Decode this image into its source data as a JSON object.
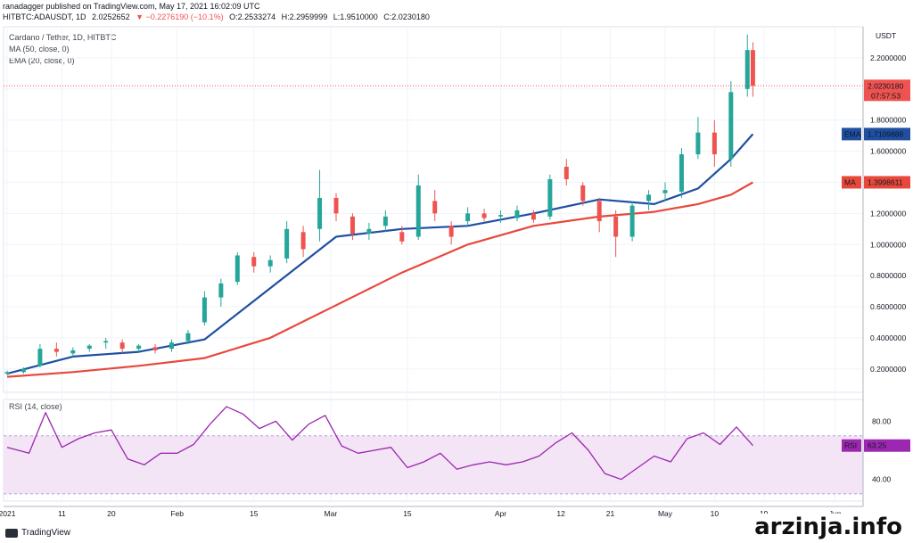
{
  "header": {
    "publisher_line": "ranadagger published on TradingView.com, May 17, 2021 16:02:09 UTC",
    "symbol": "HITBTC:ADAUSDT, 1D",
    "last": "2.0252652",
    "change": "▼ −0.2276190 (−10.1%)",
    "open": "O:2.2533274",
    "high": "H:2.2959999",
    "low": "L:1.9510000",
    "close": "C:2.0230180"
  },
  "legend": {
    "title": "Cardano / Tether, 1D, HITBTC",
    "ma": "MA (50, close, 0)",
    "ema": "EMA (20, close, 0)"
  },
  "axis": {
    "currency": "USDT",
    "price_ticks": [
      "2.2000000",
      "2.0000000",
      "1.8000000",
      "1.6000000",
      "1.4000000",
      "1.2000000",
      "1.0000000",
      "0.8000000",
      "0.6000000",
      "0.4000000",
      "0.2000000"
    ],
    "price_tick_values": [
      2.2,
      2.0,
      1.8,
      1.6,
      1.4,
      1.2,
      1.0,
      0.8,
      0.6,
      0.4,
      0.2
    ],
    "rsi_ticks": [
      "80.00",
      "40.00"
    ],
    "rsi_tick_values": [
      80,
      40
    ],
    "x_ticks": [
      "2021",
      "11",
      "20",
      "Feb",
      "15",
      "Mar",
      "15",
      "Apr",
      "12",
      "21",
      "May",
      "10",
      "19",
      "Jun"
    ],
    "x_tick_days": [
      0,
      10,
      19,
      31,
      45,
      59,
      73,
      90,
      101,
      110,
      120,
      129,
      138,
      151
    ]
  },
  "badges": {
    "price_value": "2.0230180",
    "countdown": "07:57:53",
    "ema_name": "EMA",
    "ema_value": "1.7109888",
    "ma_name": "MA",
    "ma_value": "1.3998611",
    "rsi_name": "RSI",
    "rsi_value": "63.25"
  },
  "rsi_title": "RSI (14, close)",
  "brand": "TradingView",
  "watermark": "arzinja.info",
  "colors": {
    "up": "#26a69a",
    "down": "#ef5350",
    "ema": "#1e4fa1",
    "ma": "#e8483c",
    "rsi": "#9c27b0",
    "rsi_band": "#f3e5f5"
  },
  "chart_data": [
    {
      "type": "candlestick",
      "title": "Cardano / Tether, 1D, HITBTC",
      "x_unit": "days since Jan 1, 2021",
      "ylim": [
        0.05,
        2.4
      ],
      "grid": true,
      "candles": [
        {
          "x": 0,
          "o": 0.17,
          "h": 0.19,
          "l": 0.16,
          "c": 0.18
        },
        {
          "x": 3,
          "o": 0.18,
          "h": 0.21,
          "l": 0.17,
          "c": 0.2
        },
        {
          "x": 6,
          "o": 0.22,
          "h": 0.36,
          "l": 0.21,
          "c": 0.33
        },
        {
          "x": 9,
          "o": 0.33,
          "h": 0.37,
          "l": 0.28,
          "c": 0.31
        },
        {
          "x": 12,
          "o": 0.3,
          "h": 0.34,
          "l": 0.28,
          "c": 0.32
        },
        {
          "x": 15,
          "o": 0.33,
          "h": 0.36,
          "l": 0.31,
          "c": 0.35
        },
        {
          "x": 18,
          "o": 0.37,
          "h": 0.4,
          "l": 0.33,
          "c": 0.38
        },
        {
          "x": 21,
          "o": 0.37,
          "h": 0.39,
          "l": 0.3,
          "c": 0.33
        },
        {
          "x": 24,
          "o": 0.33,
          "h": 0.36,
          "l": 0.31,
          "c": 0.35
        },
        {
          "x": 27,
          "o": 0.34,
          "h": 0.36,
          "l": 0.3,
          "c": 0.32
        },
        {
          "x": 30,
          "o": 0.33,
          "h": 0.39,
          "l": 0.31,
          "c": 0.37
        },
        {
          "x": 33,
          "o": 0.38,
          "h": 0.45,
          "l": 0.36,
          "c": 0.43
        },
        {
          "x": 36,
          "o": 0.5,
          "h": 0.7,
          "l": 0.48,
          "c": 0.66
        },
        {
          "x": 39,
          "o": 0.66,
          "h": 0.78,
          "l": 0.6,
          "c": 0.75
        },
        {
          "x": 42,
          "o": 0.76,
          "h": 0.95,
          "l": 0.74,
          "c": 0.93
        },
        {
          "x": 45,
          "o": 0.92,
          "h": 0.95,
          "l": 0.82,
          "c": 0.86
        },
        {
          "x": 48,
          "o": 0.86,
          "h": 0.93,
          "l": 0.82,
          "c": 0.9
        },
        {
          "x": 51,
          "o": 0.91,
          "h": 1.15,
          "l": 0.88,
          "c": 1.1
        },
        {
          "x": 54,
          "o": 1.08,
          "h": 1.12,
          "l": 0.92,
          "c": 0.97
        },
        {
          "x": 57,
          "o": 1.1,
          "h": 1.48,
          "l": 1.02,
          "c": 1.3
        },
        {
          "x": 60,
          "o": 1.3,
          "h": 1.33,
          "l": 1.15,
          "c": 1.2
        },
        {
          "x": 63,
          "o": 1.18,
          "h": 1.2,
          "l": 1.03,
          "c": 1.07
        },
        {
          "x": 66,
          "o": 1.07,
          "h": 1.14,
          "l": 1.03,
          "c": 1.1
        },
        {
          "x": 69,
          "o": 1.12,
          "h": 1.22,
          "l": 1.08,
          "c": 1.18
        },
        {
          "x": 72,
          "o": 1.08,
          "h": 1.12,
          "l": 1.0,
          "c": 1.02
        },
        {
          "x": 75,
          "o": 1.05,
          "h": 1.45,
          "l": 1.03,
          "c": 1.38
        },
        {
          "x": 78,
          "o": 1.28,
          "h": 1.35,
          "l": 1.15,
          "c": 1.2
        },
        {
          "x": 81,
          "o": 1.12,
          "h": 1.15,
          "l": 1.0,
          "c": 1.05
        },
        {
          "x": 84,
          "o": 1.15,
          "h": 1.24,
          "l": 1.12,
          "c": 1.2
        },
        {
          "x": 87,
          "o": 1.2,
          "h": 1.23,
          "l": 1.15,
          "c": 1.17
        },
        {
          "x": 90,
          "o": 1.18,
          "h": 1.22,
          "l": 1.14,
          "c": 1.19
        },
        {
          "x": 93,
          "o": 1.17,
          "h": 1.25,
          "l": 1.15,
          "c": 1.22
        },
        {
          "x": 96,
          "o": 1.2,
          "h": 1.22,
          "l": 1.14,
          "c": 1.16
        },
        {
          "x": 99,
          "o": 1.18,
          "h": 1.45,
          "l": 1.16,
          "c": 1.42
        },
        {
          "x": 102,
          "o": 1.5,
          "h": 1.55,
          "l": 1.38,
          "c": 1.42
        },
        {
          "x": 105,
          "o": 1.38,
          "h": 1.4,
          "l": 1.25,
          "c": 1.28
        },
        {
          "x": 108,
          "o": 1.28,
          "h": 1.3,
          "l": 1.08,
          "c": 1.15
        },
        {
          "x": 111,
          "o": 1.18,
          "h": 1.22,
          "l": 0.92,
          "c": 1.05
        },
        {
          "x": 114,
          "o": 1.05,
          "h": 1.28,
          "l": 1.02,
          "c": 1.25
        },
        {
          "x": 117,
          "o": 1.28,
          "h": 1.35,
          "l": 1.22,
          "c": 1.32
        },
        {
          "x": 120,
          "o": 1.33,
          "h": 1.4,
          "l": 1.28,
          "c": 1.35
        },
        {
          "x": 123,
          "o": 1.34,
          "h": 1.62,
          "l": 1.3,
          "c": 1.58
        },
        {
          "x": 126,
          "o": 1.58,
          "h": 1.82,
          "l": 1.55,
          "c": 1.72
        },
        {
          "x": 129,
          "o": 1.72,
          "h": 1.8,
          "l": 1.5,
          "c": 1.58
        },
        {
          "x": 132,
          "o": 1.55,
          "h": 2.05,
          "l": 1.5,
          "c": 1.98
        },
        {
          "x": 135,
          "o": 2.0,
          "h": 2.35,
          "l": 1.95,
          "c": 2.25
        },
        {
          "x": 136,
          "o": 2.25,
          "h": 2.3,
          "l": 1.95,
          "c": 2.02
        }
      ],
      "series": [
        {
          "name": "EMA (20, close, 0)",
          "x": [
            0,
            12,
            24,
            36,
            48,
            60,
            72,
            84,
            96,
            108,
            118,
            126,
            132,
            136
          ],
          "values": [
            0.17,
            0.28,
            0.31,
            0.39,
            0.72,
            1.05,
            1.1,
            1.12,
            1.2,
            1.29,
            1.26,
            1.36,
            1.55,
            1.71
          ]
        },
        {
          "name": "MA (50, close, 0)",
          "x": [
            0,
            12,
            24,
            36,
            48,
            60,
            72,
            84,
            96,
            108,
            118,
            126,
            132,
            136
          ],
          "values": [
            0.15,
            0.18,
            0.22,
            0.27,
            0.4,
            0.61,
            0.82,
            1.0,
            1.12,
            1.18,
            1.21,
            1.26,
            1.32,
            1.4
          ]
        }
      ]
    },
    {
      "type": "line",
      "title": "RSI (14, close)",
      "ylim": [
        25,
        95
      ],
      "band": [
        30,
        70
      ],
      "series": [
        {
          "name": "RSI",
          "x": [
            0,
            4,
            7,
            10,
            13,
            16,
            19,
            22,
            25,
            28,
            31,
            34,
            37,
            40,
            43,
            46,
            49,
            52,
            55,
            58,
            61,
            64,
            67,
            70,
            73,
            76,
            79,
            82,
            85,
            88,
            91,
            94,
            97,
            100,
            103,
            106,
            109,
            112,
            115,
            118,
            121,
            124,
            127,
            130,
            133,
            136
          ],
          "values": [
            62,
            58,
            86,
            62,
            68,
            72,
            74,
            54,
            50,
            58,
            58,
            64,
            78,
            90,
            85,
            75,
            80,
            67,
            78,
            84,
            63,
            58,
            60,
            62,
            48,
            52,
            58,
            47,
            50,
            52,
            50,
            52,
            56,
            65,
            72,
            60,
            44,
            40,
            48,
            56,
            52,
            68,
            72,
            64,
            76,
            63.25
          ]
        }
      ]
    }
  ]
}
